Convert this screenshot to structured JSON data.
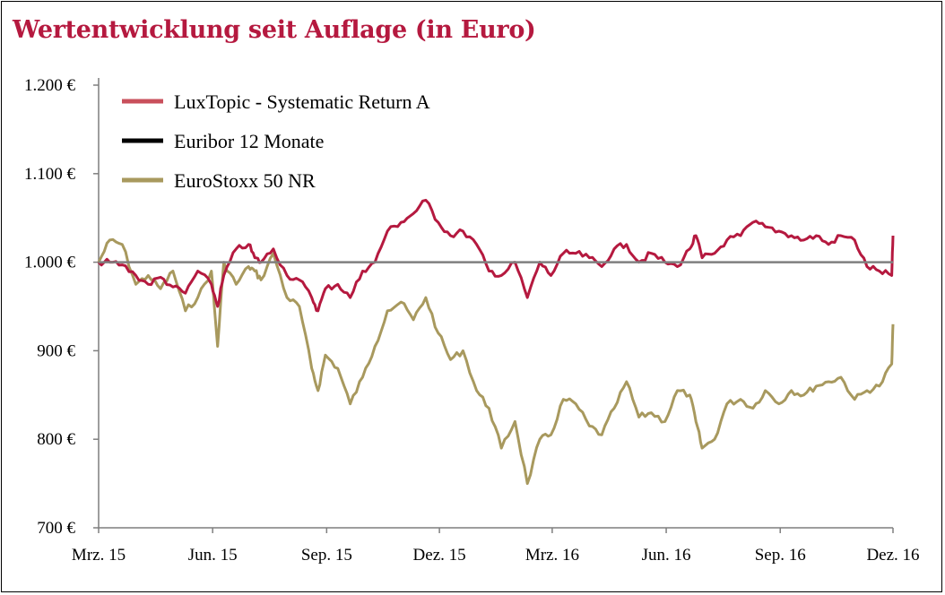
{
  "title": "Wertentwicklung seit Auflage (in Euro)",
  "chart_data": {
    "type": "line",
    "title": "Wertentwicklung seit Auflage (in Euro)",
    "xlabel": "",
    "ylabel": "",
    "ylim": [
      700,
      1200
    ],
    "y_ticks": [
      {
        "value": 1200,
        "label": "1.200 €"
      },
      {
        "value": 1100,
        "label": "1.100 €"
      },
      {
        "value": 1000,
        "label": "1.000 €"
      },
      {
        "value": 900,
        "label": "900 €"
      },
      {
        "value": 800,
        "label": "800 €"
      },
      {
        "value": 700,
        "label": "700 €"
      }
    ],
    "x_ticks": [
      {
        "value": "2015-03-01",
        "label": "Mrz. 15"
      },
      {
        "value": "2015-06-01",
        "label": "Jun. 15"
      },
      {
        "value": "2015-09-01",
        "label": "Sep. 15"
      },
      {
        "value": "2015-12-01",
        "label": "Dez. 15"
      },
      {
        "value": "2016-03-01",
        "label": "Mrz. 16"
      },
      {
        "value": "2016-06-01",
        "label": "Jun. 16"
      },
      {
        "value": "2016-09-01",
        "label": "Sep. 16"
      },
      {
        "value": "2016-12-01",
        "label": "Dez. 16"
      }
    ],
    "xlim": [
      "2015-03-01",
      "2016-12-01"
    ],
    "legend_position": "top-left",
    "grid": false,
    "series": [
      {
        "name": "LuxTopic - Systematic Return A",
        "color": "#b5193f",
        "x": [
          "2015-03-01",
          "2015-03-10",
          "2015-03-20",
          "2015-03-31",
          "2015-04-10",
          "2015-04-20",
          "2015-04-30",
          "2015-05-10",
          "2015-05-20",
          "2015-05-31",
          "2015-06-05",
          "2015-06-10",
          "2015-06-20",
          "2015-06-30",
          "2015-07-05",
          "2015-07-10",
          "2015-07-20",
          "2015-07-31",
          "2015-08-10",
          "2015-08-20",
          "2015-08-25",
          "2015-08-31",
          "2015-09-10",
          "2015-09-20",
          "2015-09-30",
          "2015-10-10",
          "2015-10-20",
          "2015-10-31",
          "2015-11-10",
          "2015-11-20",
          "2015-11-30",
          "2015-12-10",
          "2015-12-20",
          "2015-12-31",
          "2016-01-10",
          "2016-01-20",
          "2016-01-31",
          "2016-02-10",
          "2016-02-20",
          "2016-02-29",
          "2016-03-10",
          "2016-03-20",
          "2016-03-31",
          "2016-04-10",
          "2016-04-20",
          "2016-04-30",
          "2016-05-10",
          "2016-05-20",
          "2016-05-31",
          "2016-06-10",
          "2016-06-20",
          "2016-06-25",
          "2016-06-30",
          "2016-07-10",
          "2016-07-20",
          "2016-07-31",
          "2016-08-10",
          "2016-08-20",
          "2016-08-31",
          "2016-09-10",
          "2016-09-20",
          "2016-09-30",
          "2016-10-10",
          "2016-10-20",
          "2016-10-31",
          "2016-11-10",
          "2016-11-20",
          "2016-11-30",
          "2016-12-01"
        ],
        "values": [
          1000,
          1000,
          997,
          985,
          975,
          983,
          972,
          965,
          990,
          975,
          950,
          985,
          1015,
          1020,
          1005,
          1000,
          1015,
          985,
          980,
          960,
          945,
          970,
          975,
          960,
          990,
          1000,
          1035,
          1045,
          1055,
          1070,
          1045,
          1030,
          1035,
          1020,
          990,
          985,
          1000,
          960,
          1000,
          985,
          1010,
          1010,
          1005,
          995,
          1015,
          1020,
          1000,
          1010,
          1000,
          995,
          1015,
          1030,
          1005,
          1010,
          1025,
          1030,
          1045,
          1040,
          1035,
          1030,
          1025,
          1030,
          1020,
          1030,
          1025,
          995,
          990,
          985,
          1030
        ]
      },
      {
        "name": "Euribor 12 Monate",
        "color": "#000000",
        "x": [
          "2015-03-01",
          "2016-12-01"
        ],
        "values": [
          1000,
          1000
        ]
      },
      {
        "name": "EuroStoxx 50 NR",
        "color": "#a8995e",
        "x": [
          "2015-03-01",
          "2015-03-10",
          "2015-03-20",
          "2015-03-31",
          "2015-04-10",
          "2015-04-20",
          "2015-04-30",
          "2015-05-10",
          "2015-05-20",
          "2015-05-31",
          "2015-06-05",
          "2015-06-10",
          "2015-06-20",
          "2015-06-30",
          "2015-07-05",
          "2015-07-10",
          "2015-07-20",
          "2015-07-31",
          "2015-08-10",
          "2015-08-20",
          "2015-08-25",
          "2015-08-31",
          "2015-09-10",
          "2015-09-20",
          "2015-09-30",
          "2015-10-10",
          "2015-10-20",
          "2015-10-31",
          "2015-11-10",
          "2015-11-20",
          "2015-11-30",
          "2015-12-10",
          "2015-12-20",
          "2015-12-31",
          "2016-01-10",
          "2016-01-20",
          "2016-01-31",
          "2016-02-10",
          "2016-02-20",
          "2016-02-29",
          "2016-03-10",
          "2016-03-20",
          "2016-03-31",
          "2016-04-10",
          "2016-04-20",
          "2016-04-30",
          "2016-05-10",
          "2016-05-20",
          "2016-05-31",
          "2016-06-10",
          "2016-06-20",
          "2016-06-25",
          "2016-06-30",
          "2016-07-10",
          "2016-07-20",
          "2016-07-31",
          "2016-08-10",
          "2016-08-20",
          "2016-08-31",
          "2016-09-10",
          "2016-09-20",
          "2016-09-30",
          "2016-10-10",
          "2016-10-20",
          "2016-10-31",
          "2016-11-10",
          "2016-11-20",
          "2016-11-30",
          "2016-12-01"
        ],
        "values": [
          1000,
          1025,
          1020,
          975,
          985,
          970,
          990,
          945,
          960,
          990,
          905,
          1000,
          975,
          995,
          990,
          980,
          1010,
          960,
          950,
          880,
          855,
          895,
          880,
          840,
          870,
          905,
          945,
          955,
          935,
          960,
          920,
          890,
          900,
          855,
          835,
          790,
          820,
          750,
          800,
          805,
          845,
          840,
          815,
          805,
          835,
          865,
          825,
          830,
          820,
          855,
          850,
          820,
          790,
          800,
          840,
          845,
          835,
          855,
          840,
          855,
          850,
          860,
          865,
          870,
          845,
          855,
          860,
          885,
          930
        ]
      }
    ]
  }
}
